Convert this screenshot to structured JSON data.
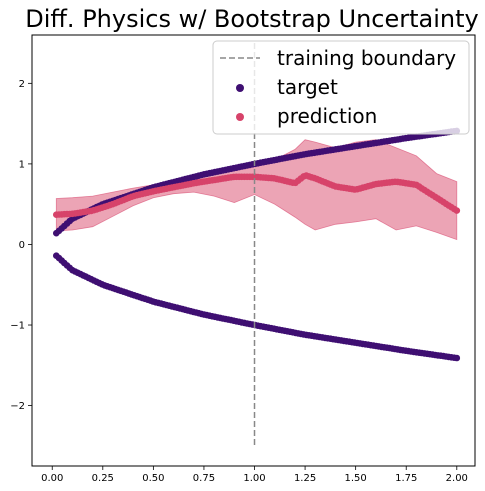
{
  "chart_data": {
    "type": "scatter",
    "title": "Diff. Physics w/ Bootstrap Uncertainty",
    "xlabel": "",
    "ylabel": "",
    "xlim": [
      -0.1,
      2.09
    ],
    "ylim": [
      -2.75,
      2.6
    ],
    "x_ticks": [
      0.0,
      0.25,
      0.5,
      0.75,
      1.0,
      1.25,
      1.5,
      1.75,
      2.0
    ],
    "x_tick_labels": [
      "0.00",
      "0.25",
      "0.50",
      "0.75",
      "1.00",
      "1.25",
      "1.50",
      "1.75",
      "2.00"
    ],
    "y_ticks": [
      2,
      1,
      0,
      -1,
      -2
    ],
    "y_tick_labels": [
      "2",
      "1",
      "0",
      "−1",
      "−2"
    ],
    "legend_position": "top-right",
    "grid": false,
    "training_boundary": {
      "name": "training boundary",
      "x": 1.0,
      "y_range": [
        -2.5,
        2.5
      ],
      "color": "#888888",
      "style": "dashed"
    },
    "series": [
      {
        "name": "target",
        "color": "#3f0f72",
        "x": [
          0.02,
          0.1,
          0.25,
          0.5,
          0.75,
          1.0,
          1.25,
          1.5,
          1.75,
          2.0
        ],
        "upper": [
          0.14,
          0.32,
          0.5,
          0.71,
          0.87,
          1.0,
          1.12,
          1.22,
          1.32,
          1.41
        ],
        "lower": [
          -0.14,
          -0.32,
          -0.5,
          -0.71,
          -0.87,
          -1.0,
          -1.12,
          -1.22,
          -1.32,
          -1.41
        ]
      },
      {
        "name": "prediction",
        "color": "#d7436a",
        "band_color": "#e994a8",
        "x": [
          0.02,
          0.1,
          0.2,
          0.3,
          0.4,
          0.5,
          0.6,
          0.7,
          0.8,
          0.9,
          1.0,
          1.1,
          1.2,
          1.25,
          1.3,
          1.4,
          1.5,
          1.6,
          1.7,
          1.8,
          1.9,
          2.0
        ],
        "mean": [
          0.37,
          0.38,
          0.42,
          0.5,
          0.6,
          0.66,
          0.71,
          0.76,
          0.8,
          0.84,
          0.84,
          0.82,
          0.76,
          0.86,
          0.82,
          0.72,
          0.68,
          0.75,
          0.78,
          0.74,
          0.58,
          0.42
        ],
        "band_upper": [
          0.57,
          0.58,
          0.6,
          0.65,
          0.7,
          0.74,
          0.78,
          0.83,
          0.9,
          0.93,
          0.98,
          1.05,
          1.18,
          1.3,
          1.27,
          1.2,
          1.27,
          1.3,
          1.2,
          1.1,
          0.88,
          0.78
        ],
        "band_lower": [
          0.17,
          0.18,
          0.22,
          0.35,
          0.48,
          0.58,
          0.63,
          0.65,
          0.6,
          0.52,
          0.62,
          0.5,
          0.34,
          0.25,
          0.18,
          0.25,
          0.28,
          0.32,
          0.18,
          0.23,
          0.15,
          0.06
        ]
      }
    ]
  }
}
